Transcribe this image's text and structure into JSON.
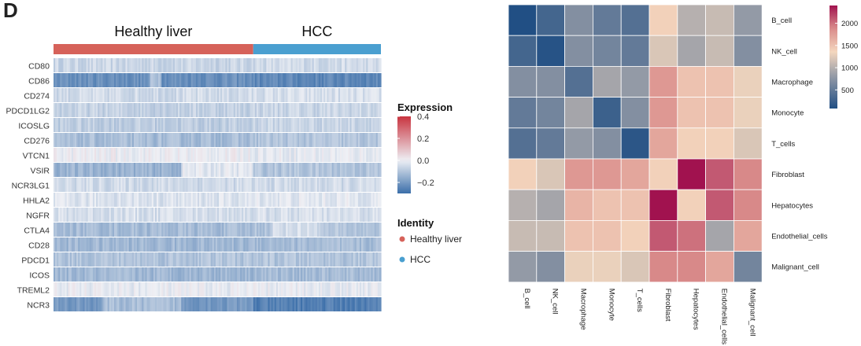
{
  "panel_label": "D",
  "colors": {
    "healthy": "#d6625a",
    "hcc": "#4a9fd0",
    "low": "#3b6ea9",
    "mid": "#eef0f5",
    "high": "#c9343f",
    "hm_low": "#214f84",
    "hm_midlow": "#8f97a5",
    "hm_mid": "#f4d7be",
    "hm_midhigh": "#d98b8a",
    "hm_high": "#a1124f"
  },
  "chart_data": [
    {
      "type": "heatmap",
      "title": "",
      "groups": [
        {
          "name": "Healthy liver",
          "fraction": 0.61
        },
        {
          "name": "HCC",
          "fraction": 0.39
        }
      ],
      "genes": [
        "CD80",
        "CD86",
        "CD274",
        "PDCD1LG2",
        "ICOSLG",
        "CD276",
        "VTCN1",
        "VSIR",
        "NCR3LG1",
        "HHLA2",
        "NGFR",
        "CTLA4",
        "CD28",
        "PDCD1",
        "ICOS",
        "TREML2",
        "NCR3"
      ],
      "mean_expression": {
        "Healthy liver": [
          -0.06,
          -0.22,
          -0.05,
          -0.07,
          -0.08,
          -0.12,
          0.0,
          -0.14,
          -0.05,
          -0.03,
          -0.04,
          -0.12,
          -0.13,
          -0.1,
          -0.13,
          -0.01,
          -0.2
        ],
        "HCC": [
          -0.05,
          -0.24,
          -0.04,
          -0.06,
          -0.06,
          -0.1,
          -0.01,
          -0.1,
          -0.05,
          -0.02,
          -0.04,
          -0.1,
          -0.12,
          -0.1,
          -0.12,
          -0.01,
          -0.26
        ]
      },
      "legend": {
        "expression_title": "Expression",
        "ticks": [
          "0.4",
          "0.2",
          "0.0",
          "−0.2"
        ],
        "tick_values": [
          0.4,
          0.2,
          0.0,
          -0.2
        ],
        "range": [
          -0.3,
          0.4
        ],
        "identity_title": "Identity",
        "identity_items": [
          "Healthy liver",
          "HCC"
        ]
      }
    },
    {
      "type": "heatmap",
      "title": "",
      "rows": [
        "B_cell",
        "NK_cell",
        "Macrophage",
        "Monocyte",
        "T_cells",
        "Fibroblast",
        "Hepatocytes",
        "Endothelial_cells",
        "Malignant_cell"
      ],
      "columns": [
        "B_cell",
        "NK_cell",
        "Macrophage",
        "Monocyte",
        "T_cells",
        "Fibroblast",
        "Hepatocytes",
        "Endothelial_cells",
        "Malignant_cell"
      ],
      "values": [
        [
          80,
          300,
          700,
          500,
          400,
          1400,
          1000,
          1100,
          800
        ],
        [
          300,
          120,
          700,
          600,
          500,
          1200,
          900,
          1100,
          700
        ],
        [
          700,
          700,
          400,
          900,
          800,
          1800,
          1500,
          1500,
          1300
        ],
        [
          500,
          600,
          900,
          250,
          700,
          1800,
          1500,
          1500,
          1300
        ],
        [
          400,
          500,
          800,
          700,
          150,
          1700,
          1400,
          1400,
          1200
        ],
        [
          1400,
          1200,
          1800,
          1800,
          1700,
          1400,
          2400,
          2100,
          1900
        ],
        [
          1000,
          900,
          1600,
          1500,
          1500,
          2400,
          1400,
          2100,
          1900
        ],
        [
          1100,
          1100,
          1500,
          1500,
          1400,
          2100,
          2000,
          900,
          1700
        ],
        [
          800,
          700,
          1300,
          1300,
          1200,
          1900,
          1900,
          1700,
          600
        ]
      ],
      "colorbar": {
        "ticks": [
          "2000",
          "1500",
          "1000",
          "500"
        ],
        "tick_values": [
          2000,
          1500,
          1000,
          500
        ],
        "range": [
          80,
          2400
        ]
      }
    }
  ]
}
